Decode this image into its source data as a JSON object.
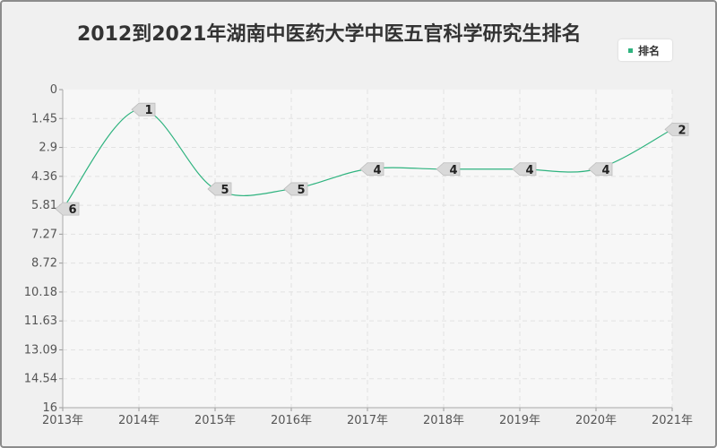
{
  "chart_data": {
    "type": "line",
    "title": "2012到2021年湖南中医药大学中医五官科学研究生排名",
    "xlabel": "",
    "ylabel": "",
    "categories": [
      "2013年",
      "2014年",
      "2015年",
      "2016年",
      "2017年",
      "2018年",
      "2019年",
      "2020年",
      "2021年"
    ],
    "series": [
      {
        "name": "排名",
        "values": [
          6,
          1,
          5,
          5,
          4,
          4,
          4,
          4,
          2
        ],
        "point_labels": [
          "6",
          "1",
          "5",
          "5",
          "4",
          "4",
          "4",
          "4",
          "2"
        ],
        "color": "#2fb37f"
      }
    ],
    "y_ticks": [
      "0",
      "1.45",
      "2.9",
      "4.36",
      "5.81",
      "7.27",
      "8.72",
      "10.18",
      "11.63",
      "13.09",
      "14.54",
      "16"
    ],
    "ylim": [
      0,
      16
    ],
    "y_inverted": true,
    "grid": true,
    "legend_position": "top-right"
  }
}
